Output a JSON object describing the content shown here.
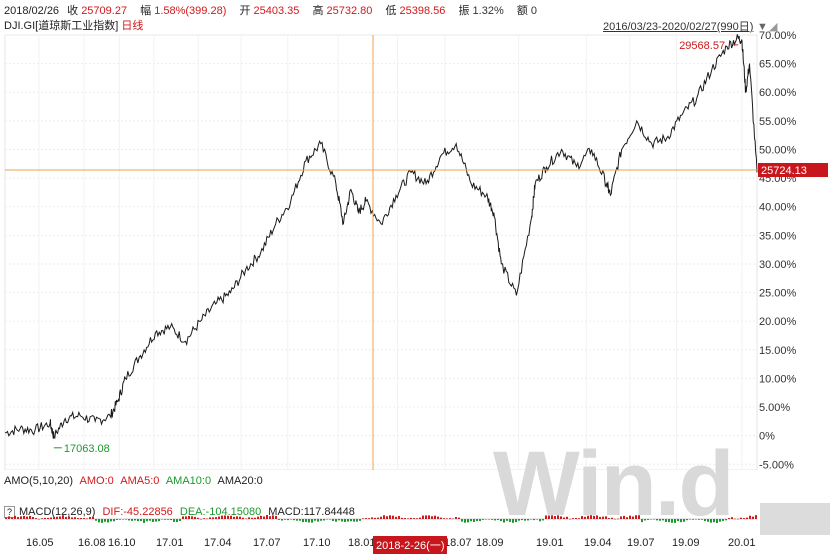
{
  "quote": {
    "date": "2018/02/26",
    "close_label": "收",
    "close_value": "25709.27",
    "change_label": "幅",
    "change_value": "1.58%(399.28)",
    "open_label": "开",
    "open_value": "25403.35",
    "high_label": "高",
    "high_value": "25732.80",
    "low_label": "低",
    "low_value": "25398.56",
    "amp_label": "振",
    "amp_value": "1.32%",
    "amount_label": "额",
    "amount_value": "0"
  },
  "title": {
    "code": "DJI.GI",
    "name": "[道琼斯工业指数]",
    "period": "日线"
  },
  "range": {
    "text": "2016/03/23-2020/02/27(990日)",
    "arrow": "▼"
  },
  "chart_data": {
    "type": "line",
    "title": "",
    "xlabel": "",
    "ylabel": "",
    "ylim": [
      -0.06,
      0.7
    ],
    "y_ticks": [
      "70.00%",
      "65.00%",
      "60.00%",
      "55.00%",
      "50.00%",
      "45.00%",
      "40.00%",
      "35.00%",
      "30.00%",
      "25.00%",
      "20.00%",
      "15.00%",
      "10.00%",
      "5.00%",
      "0%",
      "-5.00%"
    ],
    "x_ticks": [
      "16.05",
      "16.08",
      "16.10",
      "17.01",
      "17.04",
      "17.07",
      "17.10",
      "18.01",
      "18.07",
      "18.09",
      "19.01",
      "19.04",
      "19.07",
      "19.09",
      "20.01"
    ],
    "baseline": 17063.08,
    "series": [
      {
        "x": [
          0.0,
          0.02,
          0.04,
          0.06,
          0.065,
          0.08,
          0.1,
          0.12,
          0.14,
          0.15,
          0.16,
          0.18,
          0.2,
          0.22,
          0.24,
          0.26,
          0.28,
          0.3,
          0.32,
          0.34,
          0.36,
          0.38,
          0.4,
          0.42,
          0.44,
          0.45,
          0.46,
          0.47,
          0.48,
          0.5,
          0.52,
          0.54,
          0.56,
          0.58,
          0.6,
          0.62,
          0.64,
          0.65,
          0.66,
          0.68,
          0.7,
          0.705,
          0.72,
          0.74,
          0.76,
          0.78,
          0.8,
          0.805,
          0.82,
          0.84,
          0.86,
          0.88,
          0.9,
          0.92,
          0.94,
          0.96,
          0.975,
          0.98,
          0.985,
          0.99,
          1.0
        ],
        "values": [
          0.005,
          0.012,
          0.01,
          0.022,
          -0.002,
          0.03,
          0.035,
          0.025,
          0.034,
          0.06,
          0.1,
          0.14,
          0.18,
          0.19,
          0.165,
          0.2,
          0.23,
          0.25,
          0.29,
          0.32,
          0.37,
          0.41,
          0.48,
          0.51,
          0.44,
          0.37,
          0.43,
          0.39,
          0.41,
          0.37,
          0.42,
          0.46,
          0.44,
          0.49,
          0.51,
          0.44,
          0.42,
          0.39,
          0.3,
          0.245,
          0.38,
          0.44,
          0.47,
          0.5,
          0.47,
          0.5,
          0.44,
          0.42,
          0.5,
          0.55,
          0.51,
          0.52,
          0.56,
          0.59,
          0.64,
          0.68,
          0.695,
          0.69,
          0.6,
          0.65,
          0.46
        ]
      }
    ],
    "high_label": "29568.57",
    "low_label": "17063.08",
    "last_price_label": "25724.13",
    "cursor_date_label": "2018-2-26(一)",
    "colors": {
      "line": "#1a1a1a",
      "crosshair": "#f0a050",
      "high": "#d0191b",
      "low": "#1a9a2b",
      "price_tag": "#c8161d"
    }
  },
  "amo": {
    "label": "AMO(5,10,20)",
    "amo": "AMO:0",
    "ama5": "AMA5:0",
    "ama10": "AMA10:0",
    "ama20": "AMA20:0"
  },
  "macd": {
    "button": "?",
    "label": "MACD(12,26,9)",
    "dif": "DIF:-45.22856",
    "dea": "DEA:-104.15080",
    "macd": "MACD:117.84448"
  },
  "watermark": "Win.d"
}
